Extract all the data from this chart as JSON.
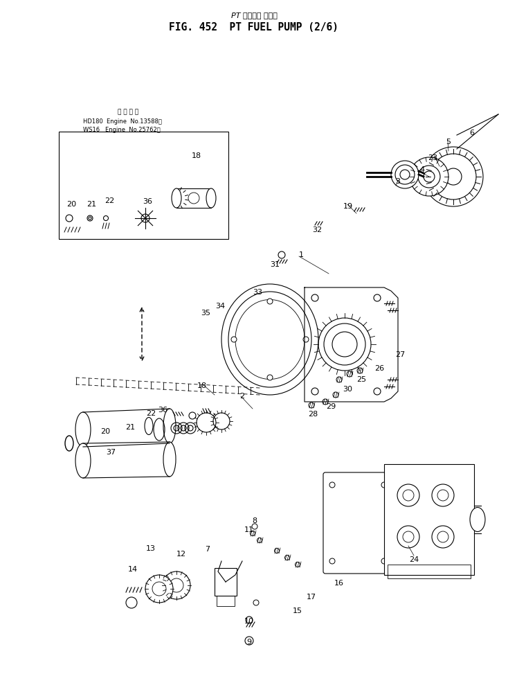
{
  "bg_color": "#ffffff",
  "title_jp": "PT フェエル ポンプ",
  "title_en": "FIG. 452  PT FUEL PUMP (2/6)",
  "inset_line1": "適 用 号 機",
  "inset_line2": "HD180  Engine  No.13588～",
  "inset_line3": "WS16   Engine  No.25762～"
}
